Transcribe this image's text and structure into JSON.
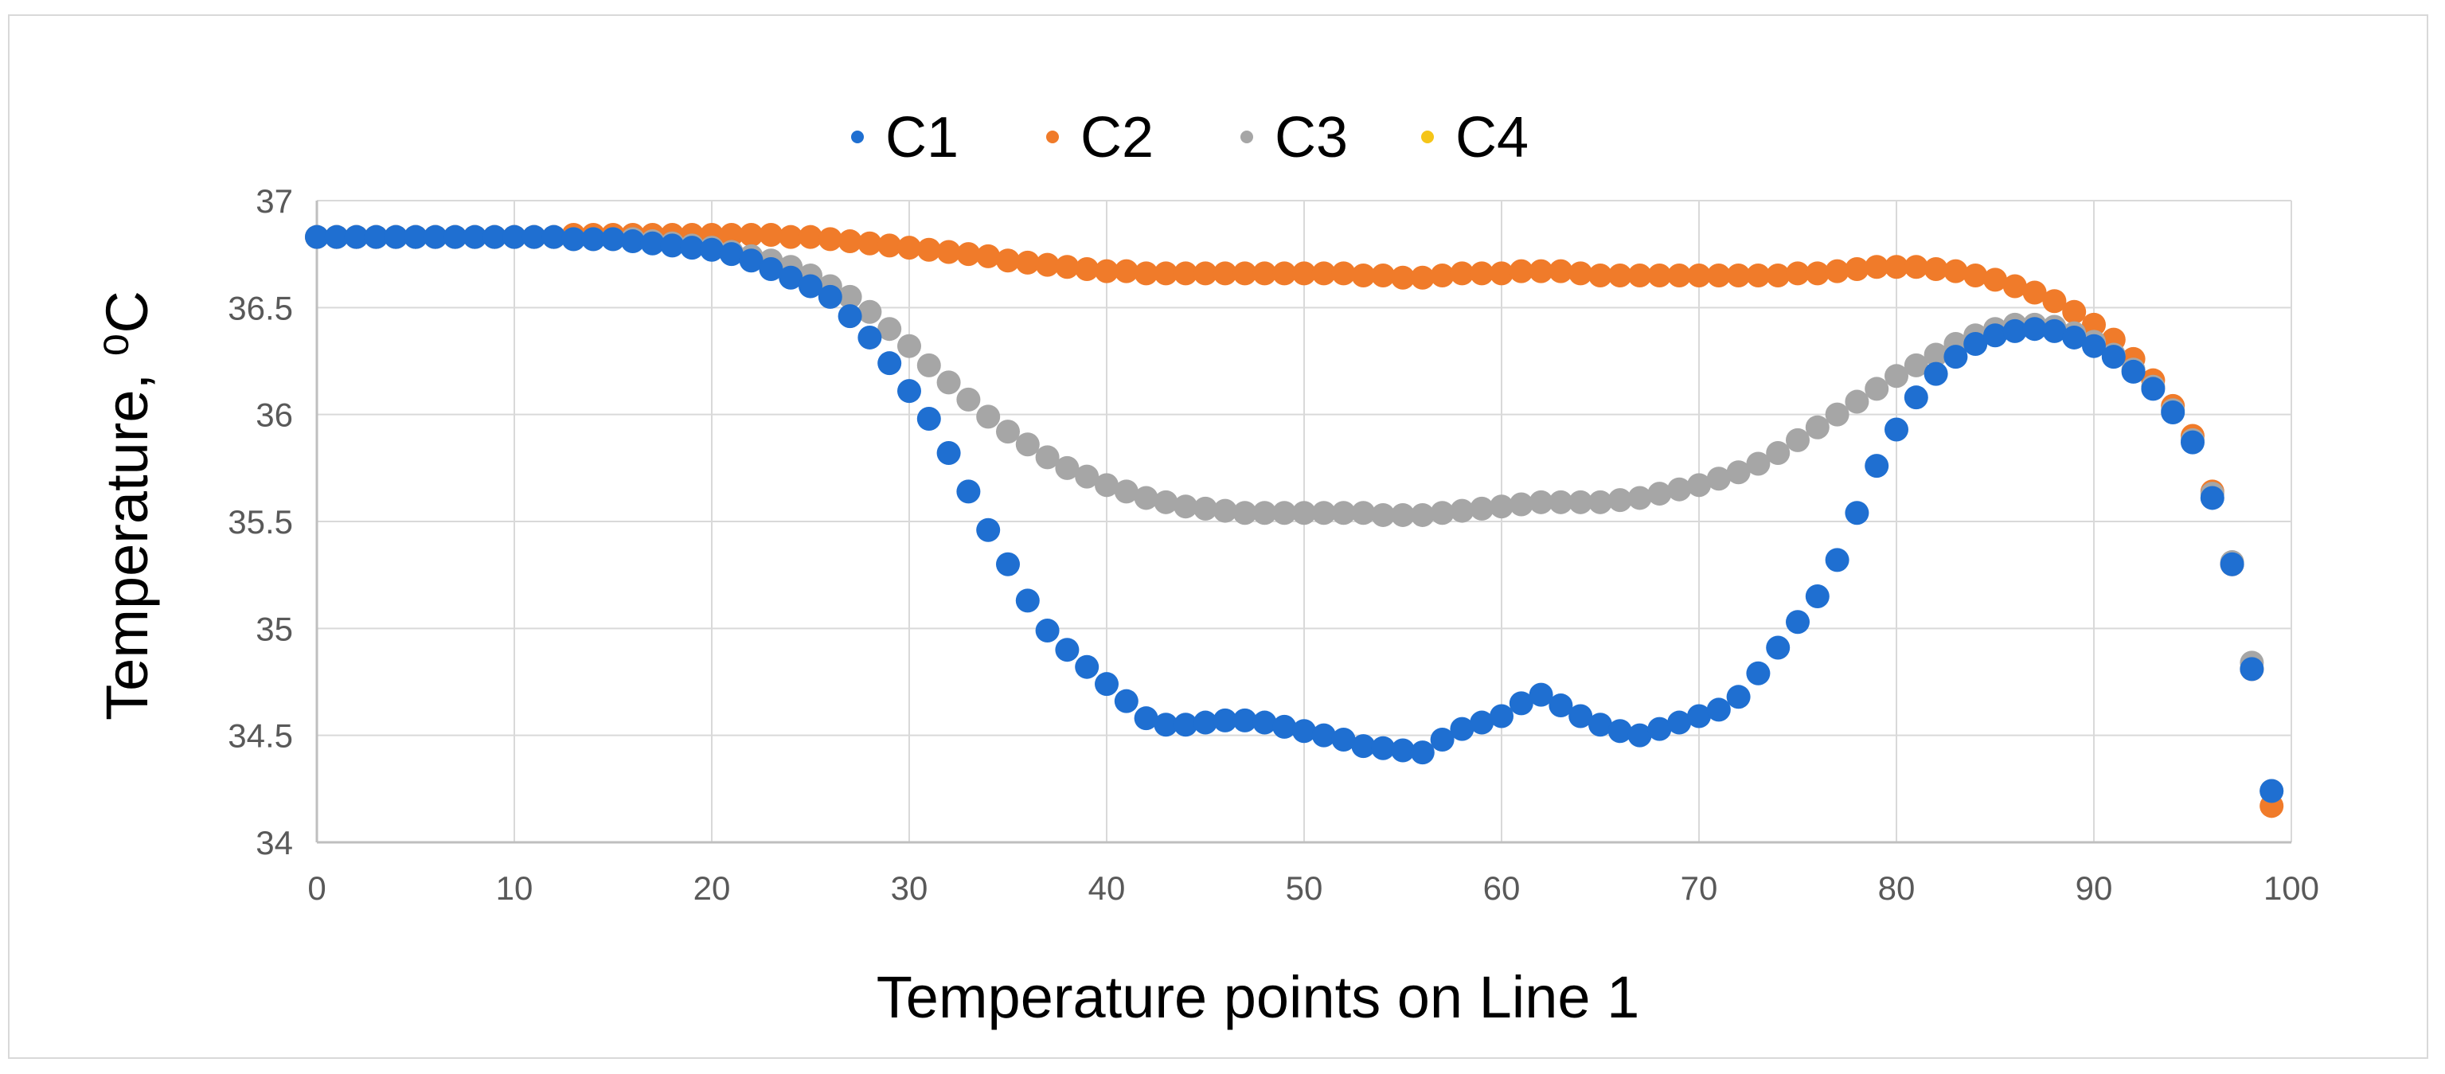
{
  "chart_data": {
    "type": "scatter",
    "title": "",
    "xlabel": "Temperature points on Line 1",
    "ylabel": "Temperature, ⁰C",
    "xlim": [
      0,
      100
    ],
    "ylim": [
      34,
      37
    ],
    "xticks": [
      "0",
      "10",
      "20",
      "30",
      "40",
      "50",
      "60",
      "70",
      "80",
      "90",
      "100"
    ],
    "yticks": [
      "34",
      "34.5",
      "35",
      "35.5",
      "36",
      "36.5",
      "37"
    ],
    "grid": true,
    "legend_position": "top",
    "colors": {
      "C1": "#1f6fd1",
      "C2": "#f07b2a",
      "C3": "#a6a6a6",
      "C4": "#f5c518",
      "grid": "#d9d9d9",
      "axis": "#bfbfbf"
    },
    "series": [
      {
        "name": "C1",
        "x_start": 0,
        "values": [
          36.83,
          36.83,
          36.83,
          36.83,
          36.83,
          36.83,
          36.83,
          36.83,
          36.83,
          36.83,
          36.83,
          36.83,
          36.83,
          36.82,
          36.82,
          36.82,
          36.81,
          36.8,
          36.79,
          36.78,
          36.77,
          36.75,
          36.72,
          36.68,
          36.64,
          36.6,
          36.55,
          36.46,
          36.36,
          36.24,
          36.11,
          35.98,
          35.82,
          35.64,
          35.46,
          35.3,
          35.13,
          34.99,
          34.9,
          34.82,
          34.74,
          34.66,
          34.58,
          34.55,
          34.55,
          34.56,
          34.57,
          34.57,
          34.56,
          34.54,
          34.52,
          34.5,
          34.48,
          34.45,
          34.44,
          34.43,
          34.42,
          34.48,
          34.53,
          34.56,
          34.59,
          34.65,
          34.69,
          34.64,
          34.59,
          34.55,
          34.52,
          34.5,
          34.53,
          34.56,
          34.59,
          34.62,
          34.68,
          34.79,
          34.91,
          35.03,
          35.15,
          35.32,
          35.54,
          35.76,
          35.93,
          36.08,
          36.19,
          36.27,
          36.33,
          36.37,
          36.39,
          36.4,
          36.39,
          36.36,
          36.32,
          36.27,
          36.2,
          36.12,
          36.01,
          35.87,
          35.61,
          35.3,
          34.81,
          34.24
        ]
      },
      {
        "name": "C2",
        "x_start": 0,
        "values": [
          36.83,
          36.83,
          36.83,
          36.83,
          36.83,
          36.83,
          36.83,
          36.83,
          36.83,
          36.83,
          36.83,
          36.83,
          36.83,
          36.84,
          36.84,
          36.84,
          36.84,
          36.84,
          36.84,
          36.84,
          36.84,
          36.84,
          36.84,
          36.84,
          36.83,
          36.83,
          36.82,
          36.81,
          36.8,
          36.79,
          36.78,
          36.77,
          36.76,
          36.75,
          36.74,
          36.72,
          36.71,
          36.7,
          36.69,
          36.68,
          36.67,
          36.67,
          36.66,
          36.66,
          36.66,
          36.66,
          36.66,
          36.66,
          36.66,
          36.66,
          36.66,
          36.66,
          36.66,
          36.65,
          36.65,
          36.64,
          36.64,
          36.65,
          36.66,
          36.66,
          36.66,
          36.67,
          36.67,
          36.67,
          36.66,
          36.65,
          36.65,
          36.65,
          36.65,
          36.65,
          36.65,
          36.65,
          36.65,
          36.65,
          36.65,
          36.66,
          36.66,
          36.67,
          36.68,
          36.69,
          36.69,
          36.69,
          36.68,
          36.67,
          36.65,
          36.63,
          36.6,
          36.57,
          36.53,
          36.48,
          36.42,
          36.35,
          36.26,
          36.16,
          36.04,
          35.9,
          35.64,
          35.3,
          34.81,
          34.17
        ]
      },
      {
        "name": "C3",
        "x_start": 0,
        "values": [
          36.83,
          36.83,
          36.83,
          36.83,
          36.83,
          36.83,
          36.83,
          36.83,
          36.83,
          36.83,
          36.83,
          36.83,
          36.83,
          36.82,
          36.82,
          36.82,
          36.82,
          36.81,
          36.8,
          36.79,
          36.78,
          36.76,
          36.74,
          36.72,
          36.69,
          36.65,
          36.6,
          36.55,
          36.48,
          36.4,
          36.32,
          36.23,
          36.15,
          36.07,
          35.99,
          35.92,
          35.86,
          35.8,
          35.75,
          35.71,
          35.67,
          35.64,
          35.61,
          35.59,
          35.57,
          35.56,
          35.55,
          35.54,
          35.54,
          35.54,
          35.54,
          35.54,
          35.54,
          35.54,
          35.53,
          35.53,
          35.53,
          35.54,
          35.55,
          35.56,
          35.57,
          35.58,
          35.59,
          35.59,
          35.59,
          35.59,
          35.6,
          35.61,
          35.63,
          35.65,
          35.67,
          35.7,
          35.73,
          35.77,
          35.82,
          35.88,
          35.94,
          36.0,
          36.06,
          36.12,
          36.18,
          36.23,
          36.28,
          36.33,
          36.37,
          36.4,
          36.42,
          36.42,
          36.41,
          36.38,
          36.34,
          36.28,
          36.21,
          36.13,
          36.02,
          35.88,
          35.63,
          35.31,
          34.84,
          34.24
        ]
      },
      {
        "name": "C4",
        "x_start": 0,
        "values": []
      }
    ]
  }
}
